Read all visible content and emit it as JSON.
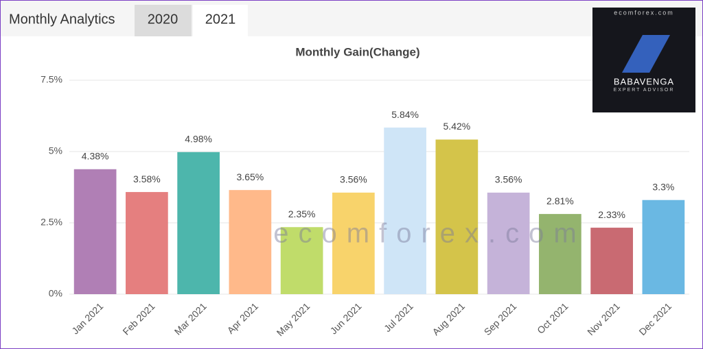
{
  "header": {
    "title": "Monthly Analytics",
    "tabs": [
      "2020",
      "2021"
    ]
  },
  "chart_data": {
    "type": "bar",
    "title": "Monthly Gain(Change)",
    "categories": [
      "Jan 2021",
      "Feb 2021",
      "Mar 2021",
      "Apr 2021",
      "May 2021",
      "Jun 2021",
      "Jul 2021",
      "Aug 2021",
      "Sep 2021",
      "Oct 2021",
      "Nov 2021",
      "Dec 2021"
    ],
    "values": [
      4.38,
      3.58,
      4.98,
      3.65,
      2.35,
      3.56,
      5.84,
      5.42,
      3.56,
      2.81,
      2.33,
      3.3
    ],
    "value_labels": [
      "4.38%",
      "3.58%",
      "4.98%",
      "3.65%",
      "2.35%",
      "3.56%",
      "5.84%",
      "5.42%",
      "3.56%",
      "2.81%",
      "2.33%",
      "3.3%"
    ],
    "colors": [
      "#b07fb5",
      "#e57f7f",
      "#4db6ac",
      "#ffb98a",
      "#c0dc6a",
      "#f8d36b",
      "#cfe5f7",
      "#d4c44a",
      "#c5b3d9",
      "#94b46e",
      "#c96a72",
      "#6ab8e3"
    ],
    "ylim": [
      0,
      7.5
    ],
    "yticks": [
      {
        "value": 0,
        "label": "0%"
      },
      {
        "value": 2.5,
        "label": "2.5%"
      },
      {
        "value": 5,
        "label": "5%"
      },
      {
        "value": 7.5,
        "label": "7.5%"
      }
    ],
    "grid": true
  },
  "watermark": "ecomforex.com",
  "ad": {
    "site": "ecomforex.com",
    "brand": "BABAVENGA",
    "tagline": "EXPERT ADVISOR"
  }
}
